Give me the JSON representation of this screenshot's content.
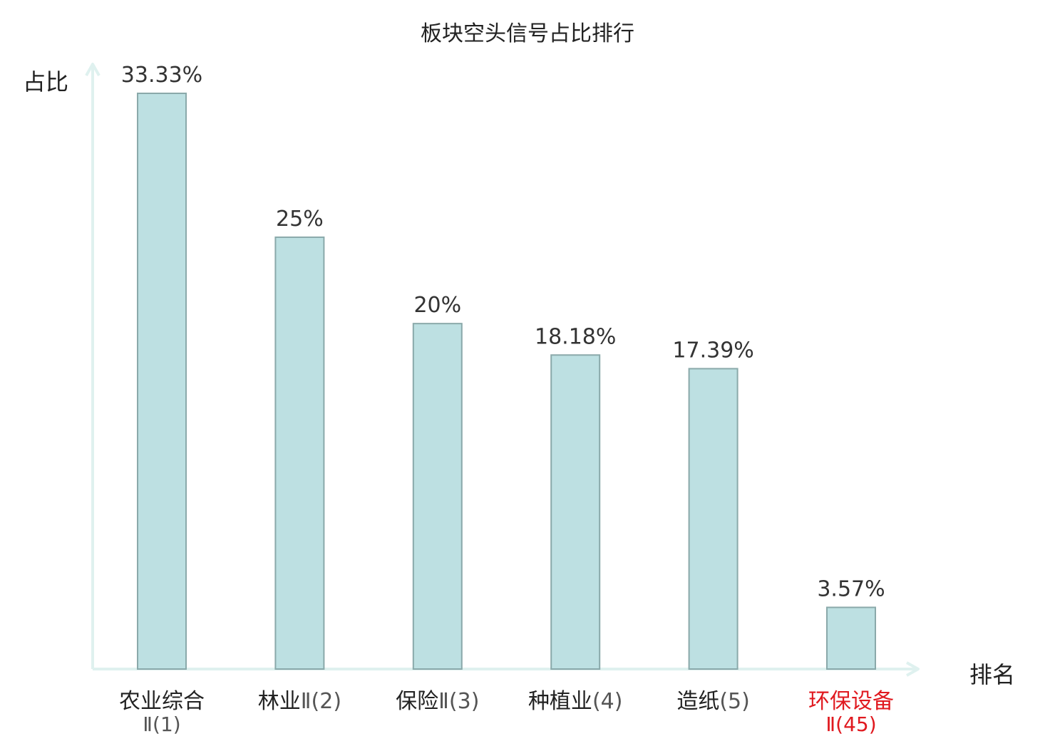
{
  "chart_data": {
    "type": "bar",
    "title": "板块空头信号占比排行",
    "xlabel": "排名",
    "ylabel": "占比",
    "ylim": [
      0,
      33.33
    ],
    "categories": [
      {
        "name": "农业综合",
        "rank": "Ⅱ(1)",
        "highlight": false
      },
      {
        "name": "林业",
        "rank": "Ⅱ(2)",
        "highlight": false
      },
      {
        "name": "保险",
        "rank": "Ⅱ(3)",
        "highlight": false
      },
      {
        "name": "种植业",
        "rank": "(4)",
        "highlight": false
      },
      {
        "name": "造纸",
        "rank": "(5)",
        "highlight": false
      },
      {
        "name": "环保设备",
        "rank": "Ⅱ(45)",
        "highlight": true
      }
    ],
    "values": [
      33.33,
      25,
      20,
      18.18,
      17.39,
      3.57
    ],
    "value_labels": [
      "33.33%",
      "25%",
      "20%",
      "18.18%",
      "17.39%",
      "3.57%"
    ],
    "grid": false,
    "legend": "none",
    "colors": {
      "bar_fill": "#bde0e2",
      "bar_stroke": "#8aa9aa",
      "axis": "#dff1ef",
      "highlight_text": "#e0191f",
      "text": "#222222",
      "rank_text": "#555555",
      "value_text": "#333333"
    }
  }
}
